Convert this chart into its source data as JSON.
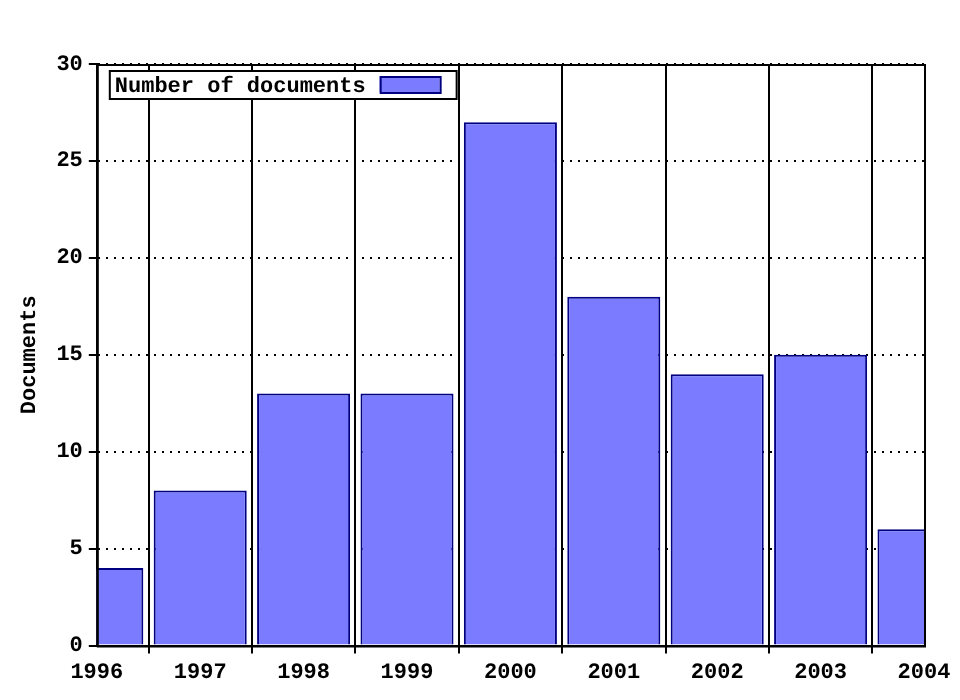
{
  "chart_data": {
    "type": "bar",
    "ylabel": "Documents",
    "x": [
      1996,
      1997,
      1998,
      1999,
      2000,
      2001,
      2002,
      2003,
      2004
    ],
    "series": [
      {
        "name": "Number of documents",
        "color": "#7b7bff",
        "values": [
          4,
          8,
          13,
          13,
          27,
          18,
          14,
          15,
          6
        ]
      }
    ],
    "xlim": [
      1996,
      2004
    ],
    "xticks": [
      1996,
      1997,
      1998,
      1999,
      2000,
      2001,
      2002,
      2003,
      2004
    ],
    "ylim": [
      0,
      30
    ],
    "yticks": [
      0,
      5,
      10,
      15,
      20,
      25,
      30
    ],
    "grid": true,
    "legend": "top left"
  }
}
